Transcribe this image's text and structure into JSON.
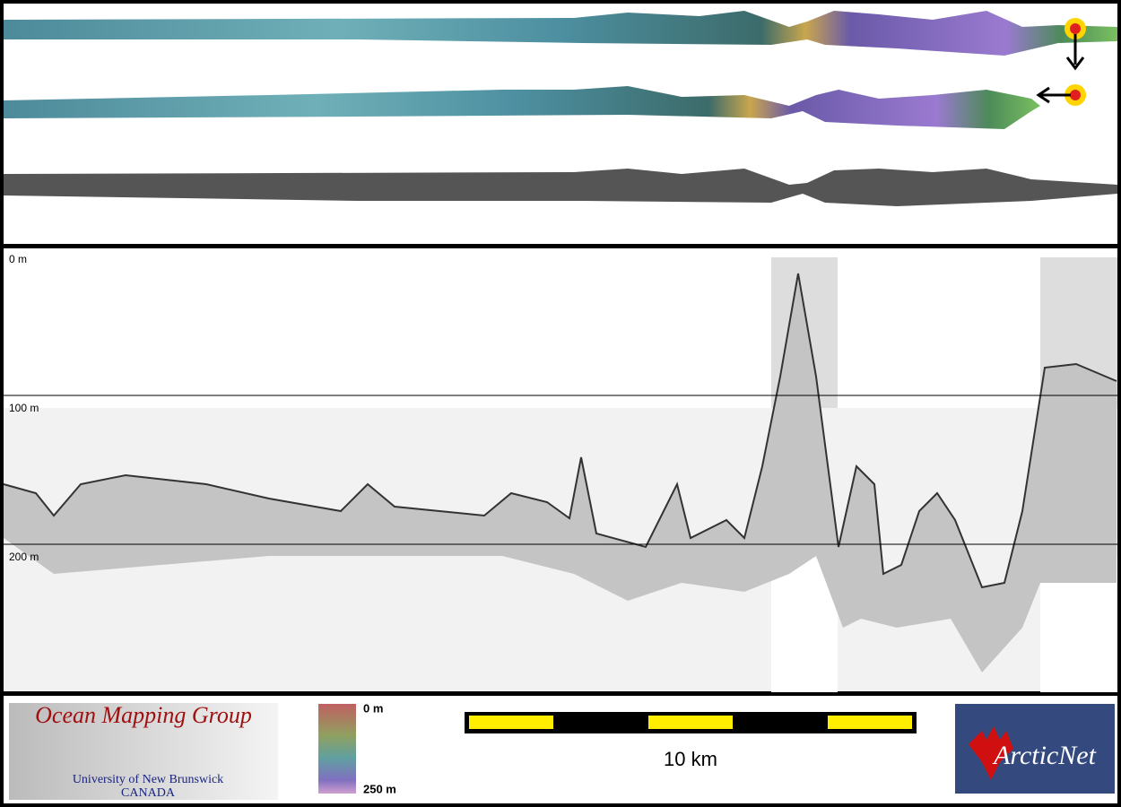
{
  "profile": {
    "depth_labels": [
      "0 m",
      "100 m",
      "200 m"
    ]
  },
  "footer": {
    "logo_left": {
      "title": "Ocean Mapping Group",
      "line1": "University of New Brunswick",
      "line2": "CANADA"
    },
    "colorbar": {
      "top": "0 m",
      "bottom": "250 m"
    },
    "scale": "10 km",
    "logo_right": "ArcticNet"
  }
}
